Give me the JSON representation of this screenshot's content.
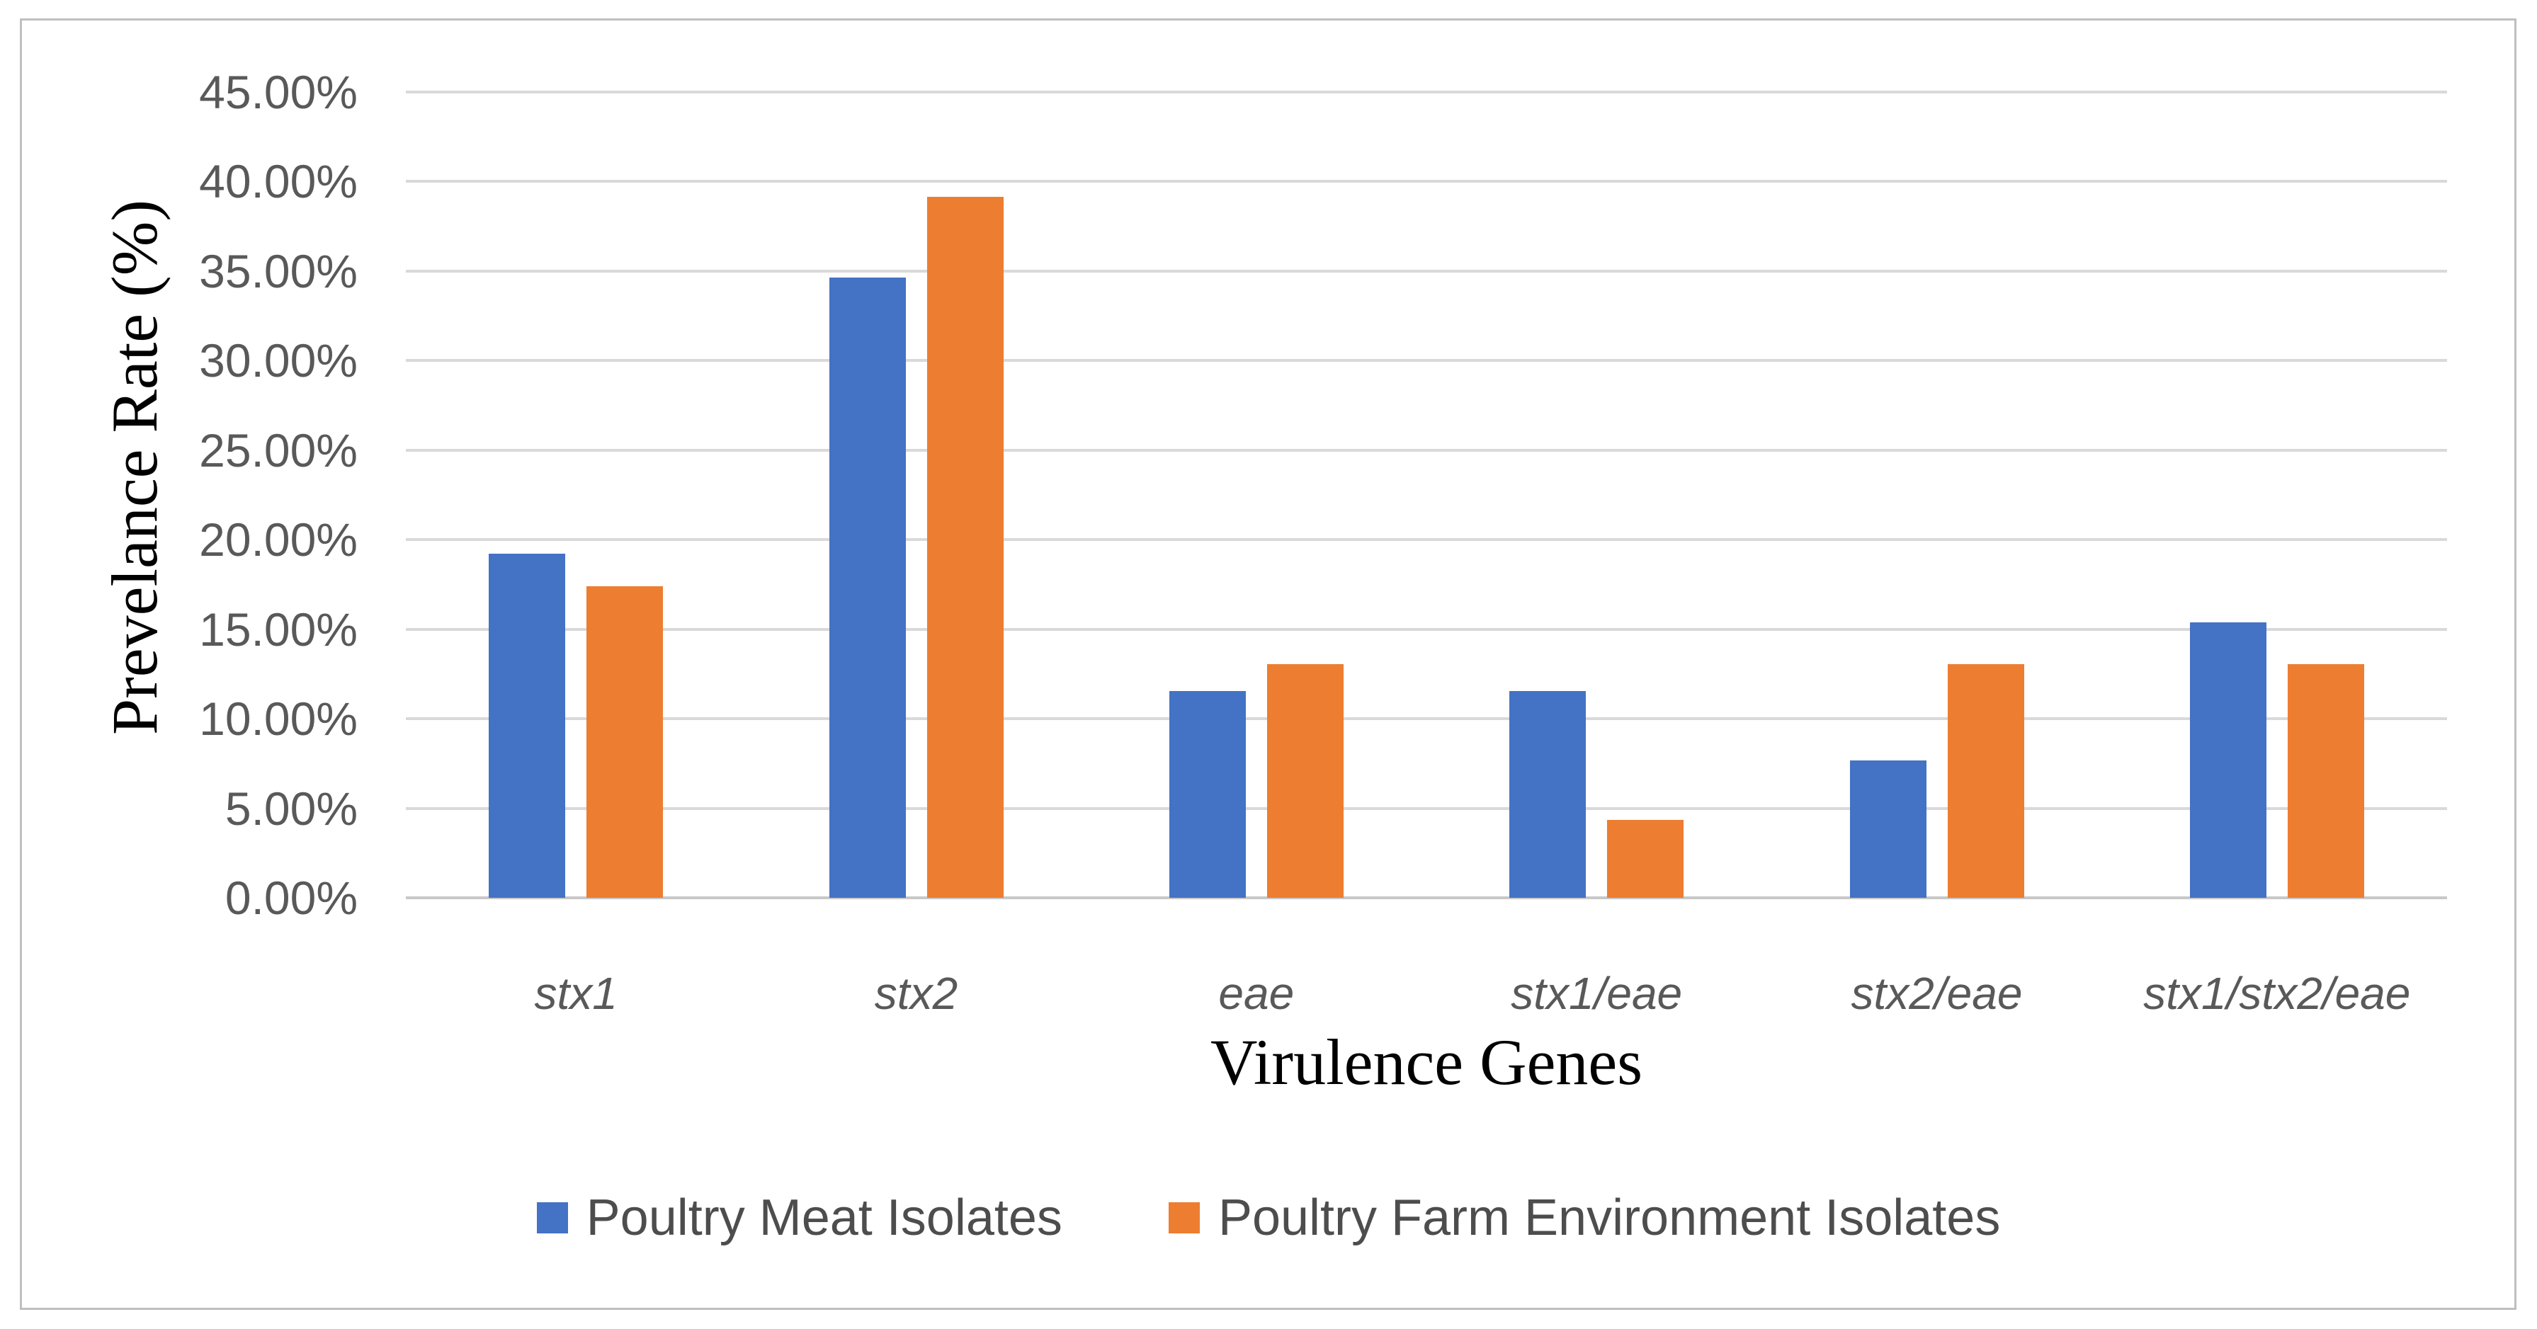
{
  "figure": {
    "background_color": "#FFFFFF",
    "border_color": "#BFBFBF",
    "gridline_color": "#D9D9D9",
    "axis_line_color": "#C8C8C8",
    "tick_label_color": "#595959",
    "legend_text_color": "#4d4d4d"
  },
  "chart_data": {
    "type": "bar",
    "title": "",
    "categories": [
      "stx1",
      "stx2",
      "eae",
      "stx1/eae",
      "stx2/eae",
      "stx1/stx2/eae"
    ],
    "series": [
      {
        "name": "Poultry Meat Isolates",
        "color": "#4472C4",
        "values": [
          19.23,
          34.62,
          11.54,
          11.54,
          7.69,
          15.38
        ]
      },
      {
        "name": "Poultry Farm Environment Isolates",
        "color": "#ED7D31",
        "values": [
          17.39,
          39.13,
          13.04,
          4.35,
          13.04,
          13.04
        ]
      }
    ],
    "xlabel": "Virulence Genes",
    "ylabel": "Prevelance Rate (%)",
    "ylim": [
      0,
      45
    ],
    "ytick_step": 5,
    "ytick_labels": [
      "0.00%",
      "5.00%",
      "10.00%",
      "15.00%",
      "20.00%",
      "25.00%",
      "30.00%",
      "35.00%",
      "40.00%",
      "45.00%"
    ],
    "grid": true,
    "legend_position": "bottom-center"
  }
}
